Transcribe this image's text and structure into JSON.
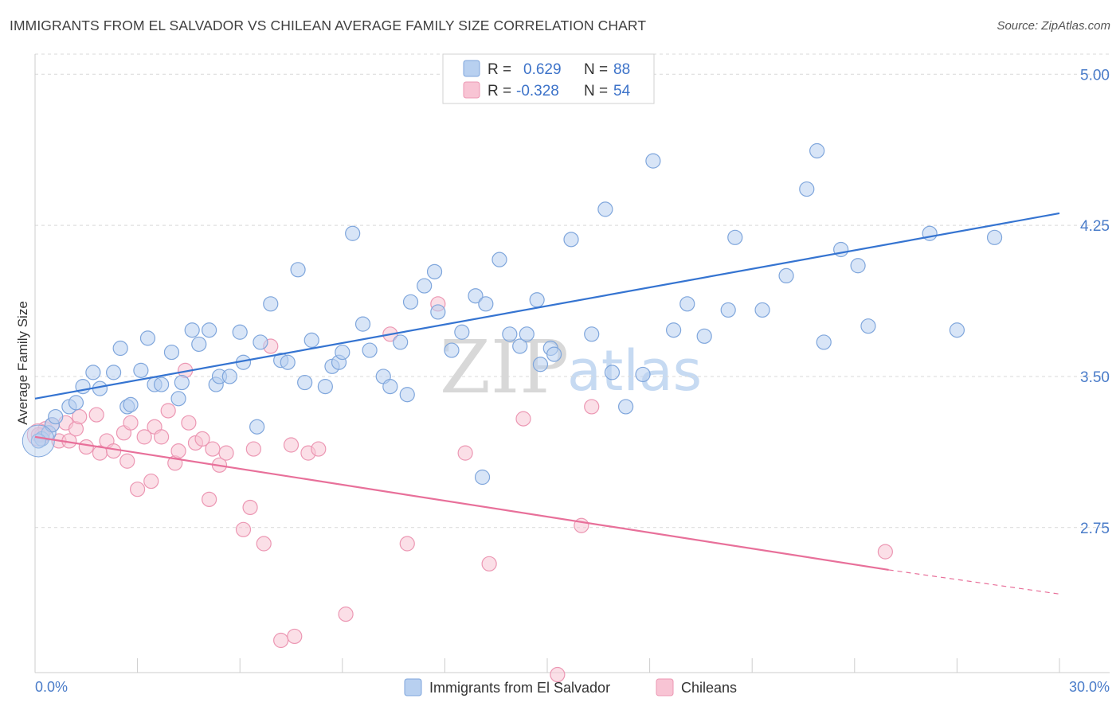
{
  "title": "IMMIGRANTS FROM EL SALVADOR VS CHILEAN AVERAGE FAMILY SIZE CORRELATION CHART",
  "source": "Source: ZipAtlas.com",
  "watermark": {
    "zip": "ZIP",
    "atlas": "atlas"
  },
  "colors": {
    "blue_fill": "#b8d0f0",
    "blue_stroke": "#7fa6dc",
    "blue_line": "#3574d1",
    "pink_fill": "#f8c4d4",
    "pink_stroke": "#ec97b3",
    "pink_line": "#e8709a",
    "grid": "#d9d9d9",
    "axis_label": "#4a7cc9"
  },
  "legend": {
    "rows": [
      {
        "r_label": "R =",
        "r_value": "0.629",
        "n_label": "N =",
        "n_value": "88"
      },
      {
        "r_label": "R =",
        "r_value": "-0.328",
        "n_label": "N =",
        "n_value": "54"
      }
    ]
  },
  "bottom_legend": [
    "Immigrants from El Salvador",
    "Chileans"
  ],
  "chart_data": {
    "type": "scatter",
    "title": "IMMIGRANTS FROM EL SALVADOR VS CHILEAN AVERAGE FAMILY SIZE CORRELATION CHART",
    "xlabel": "",
    "ylabel": "Average Family Size",
    "xlim": [
      0,
      30
    ],
    "ylim": [
      2.03,
      5.1
    ],
    "x_tick_labels": [
      "0.0%",
      "30.0%"
    ],
    "y_ticks": [
      2.75,
      3.5,
      4.25,
      5.0
    ],
    "y_tick_labels": [
      "2.75",
      "3.50",
      "4.25",
      "5.00"
    ],
    "grid": "horizontal dashed",
    "legend_position": "top-center",
    "series": [
      {
        "name": "Immigrants from El Salvador",
        "color": "#b8d0f0",
        "trend": {
          "x": [
            0,
            30
          ],
          "y": [
            3.39,
            4.31
          ]
        },
        "points": [
          [
            0.2,
            3.19
          ],
          [
            0.4,
            3.22
          ],
          [
            0.5,
            3.26
          ],
          [
            0.6,
            3.3
          ],
          [
            1.0,
            3.35
          ],
          [
            1.2,
            3.37
          ],
          [
            1.4,
            3.45
          ],
          [
            1.7,
            3.52
          ],
          [
            1.9,
            3.44
          ],
          [
            2.3,
            3.52
          ],
          [
            2.5,
            3.64
          ],
          [
            2.7,
            3.35
          ],
          [
            2.8,
            3.36
          ],
          [
            3.1,
            3.53
          ],
          [
            3.3,
            3.69
          ],
          [
            3.5,
            3.46
          ],
          [
            3.7,
            3.46
          ],
          [
            4.0,
            3.62
          ],
          [
            4.2,
            3.39
          ],
          [
            4.3,
            3.47
          ],
          [
            4.6,
            3.73
          ],
          [
            4.8,
            3.66
          ],
          [
            5.1,
            3.73
          ],
          [
            5.3,
            3.46
          ],
          [
            5.4,
            3.5
          ],
          [
            5.7,
            3.5
          ],
          [
            6.0,
            3.72
          ],
          [
            6.1,
            3.57
          ],
          [
            6.5,
            3.25
          ],
          [
            6.6,
            3.67
          ],
          [
            6.9,
            3.86
          ],
          [
            7.2,
            3.58
          ],
          [
            7.4,
            3.57
          ],
          [
            7.7,
            4.03
          ],
          [
            7.9,
            3.47
          ],
          [
            8.1,
            3.68
          ],
          [
            8.5,
            3.45
          ],
          [
            8.7,
            3.55
          ],
          [
            8.9,
            3.57
          ],
          [
            9.0,
            3.62
          ],
          [
            9.3,
            4.21
          ],
          [
            9.6,
            3.76
          ],
          [
            9.8,
            3.63
          ],
          [
            10.2,
            3.5
          ],
          [
            10.4,
            3.45
          ],
          [
            10.7,
            3.67
          ],
          [
            10.9,
            3.41
          ],
          [
            11.0,
            3.87
          ],
          [
            11.4,
            3.95
          ],
          [
            11.7,
            4.02
          ],
          [
            11.8,
            3.82
          ],
          [
            12.2,
            3.63
          ],
          [
            12.5,
            3.72
          ],
          [
            12.9,
            3.9
          ],
          [
            13.1,
            3.0
          ],
          [
            13.2,
            3.86
          ],
          [
            13.6,
            4.08
          ],
          [
            13.9,
            3.71
          ],
          [
            14.2,
            3.65
          ],
          [
            14.4,
            3.71
          ],
          [
            14.7,
            3.88
          ],
          [
            14.8,
            3.56
          ],
          [
            15.1,
            3.64
          ],
          [
            15.2,
            3.61
          ],
          [
            15.7,
            4.18
          ],
          [
            16.3,
            3.71
          ],
          [
            16.7,
            4.33
          ],
          [
            16.9,
            3.52
          ],
          [
            17.3,
            3.35
          ],
          [
            17.8,
            3.51
          ],
          [
            18.1,
            4.57
          ],
          [
            18.7,
            3.73
          ],
          [
            19.1,
            3.86
          ],
          [
            19.6,
            3.7
          ],
          [
            20.3,
            3.83
          ],
          [
            20.5,
            4.19
          ],
          [
            21.3,
            3.83
          ],
          [
            22.0,
            4.0
          ],
          [
            22.6,
            4.43
          ],
          [
            22.9,
            4.62
          ],
          [
            23.1,
            3.67
          ],
          [
            23.6,
            4.13
          ],
          [
            24.1,
            4.05
          ],
          [
            24.4,
            3.75
          ],
          [
            26.2,
            4.21
          ],
          [
            27.0,
            3.73
          ],
          [
            28.1,
            4.19
          ],
          [
            0.1,
            3.18
          ]
        ]
      },
      {
        "name": "Chileans",
        "color": "#f8c4d4",
        "trend": {
          "x": [
            0,
            25.0
          ],
          "y": [
            3.2,
            2.54
          ],
          "dashed_to": [
            30,
            2.42
          ]
        },
        "points": [
          [
            0.2,
            3.21
          ],
          [
            0.3,
            3.24
          ],
          [
            0.5,
            3.26
          ],
          [
            0.7,
            3.18
          ],
          [
            0.9,
            3.27
          ],
          [
            1.0,
            3.18
          ],
          [
            1.2,
            3.24
          ],
          [
            1.3,
            3.3
          ],
          [
            1.5,
            3.15
          ],
          [
            1.8,
            3.31
          ],
          [
            1.9,
            3.12
          ],
          [
            2.1,
            3.18
          ],
          [
            2.3,
            3.13
          ],
          [
            2.6,
            3.22
          ],
          [
            2.7,
            3.08
          ],
          [
            2.8,
            3.27
          ],
          [
            3.0,
            2.94
          ],
          [
            3.2,
            3.2
          ],
          [
            3.4,
            2.98
          ],
          [
            3.5,
            3.25
          ],
          [
            3.7,
            3.2
          ],
          [
            3.9,
            3.33
          ],
          [
            4.1,
            3.07
          ],
          [
            4.2,
            3.13
          ],
          [
            4.4,
            3.53
          ],
          [
            4.5,
            3.27
          ],
          [
            4.7,
            3.17
          ],
          [
            4.9,
            3.19
          ],
          [
            5.1,
            2.89
          ],
          [
            5.2,
            3.14
          ],
          [
            5.4,
            3.06
          ],
          [
            5.6,
            3.12
          ],
          [
            6.1,
            2.74
          ],
          [
            6.3,
            2.85
          ],
          [
            6.4,
            3.14
          ],
          [
            6.7,
            2.67
          ],
          [
            6.9,
            3.65
          ],
          [
            7.2,
            2.19
          ],
          [
            7.5,
            3.16
          ],
          [
            7.6,
            2.21
          ],
          [
            8.0,
            3.12
          ],
          [
            8.3,
            3.14
          ],
          [
            9.1,
            2.32
          ],
          [
            10.4,
            3.71
          ],
          [
            10.9,
            2.67
          ],
          [
            11.8,
            3.86
          ],
          [
            12.6,
            3.12
          ],
          [
            13.3,
            2.57
          ],
          [
            14.3,
            3.29
          ],
          [
            15.3,
            2.02
          ],
          [
            16.0,
            2.76
          ],
          [
            16.3,
            3.35
          ],
          [
            24.9,
            2.63
          ],
          [
            0.1,
            3.21
          ]
        ]
      }
    ]
  }
}
